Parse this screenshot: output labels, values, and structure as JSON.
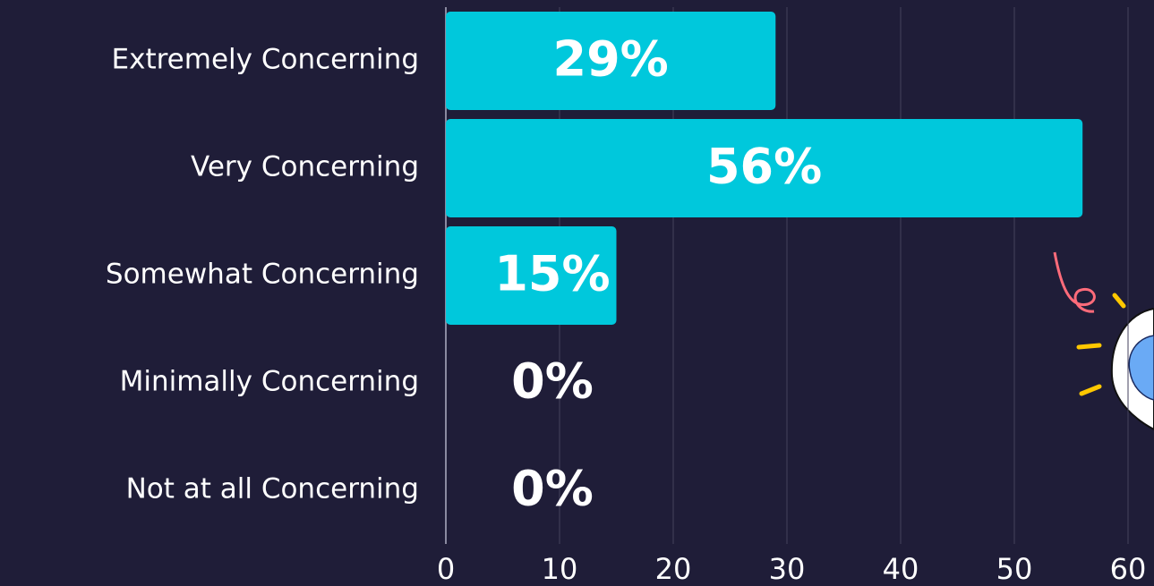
{
  "chart_data": {
    "type": "bar",
    "orientation": "horizontal",
    "categories": [
      "Extremely Concerning",
      "Very Concerning",
      "Somewhat Concerning",
      "Minimally Concerning",
      "Not at all Concerning"
    ],
    "values": [
      29,
      56,
      15,
      0,
      0
    ],
    "value_labels": [
      "29%",
      "56%",
      "15%",
      "0%",
      "0%"
    ],
    "color": "#00c8dc",
    "xlim": [
      0,
      60
    ],
    "xticks": [
      0,
      10,
      20,
      30,
      40,
      50,
      60
    ],
    "grid": true
  }
}
